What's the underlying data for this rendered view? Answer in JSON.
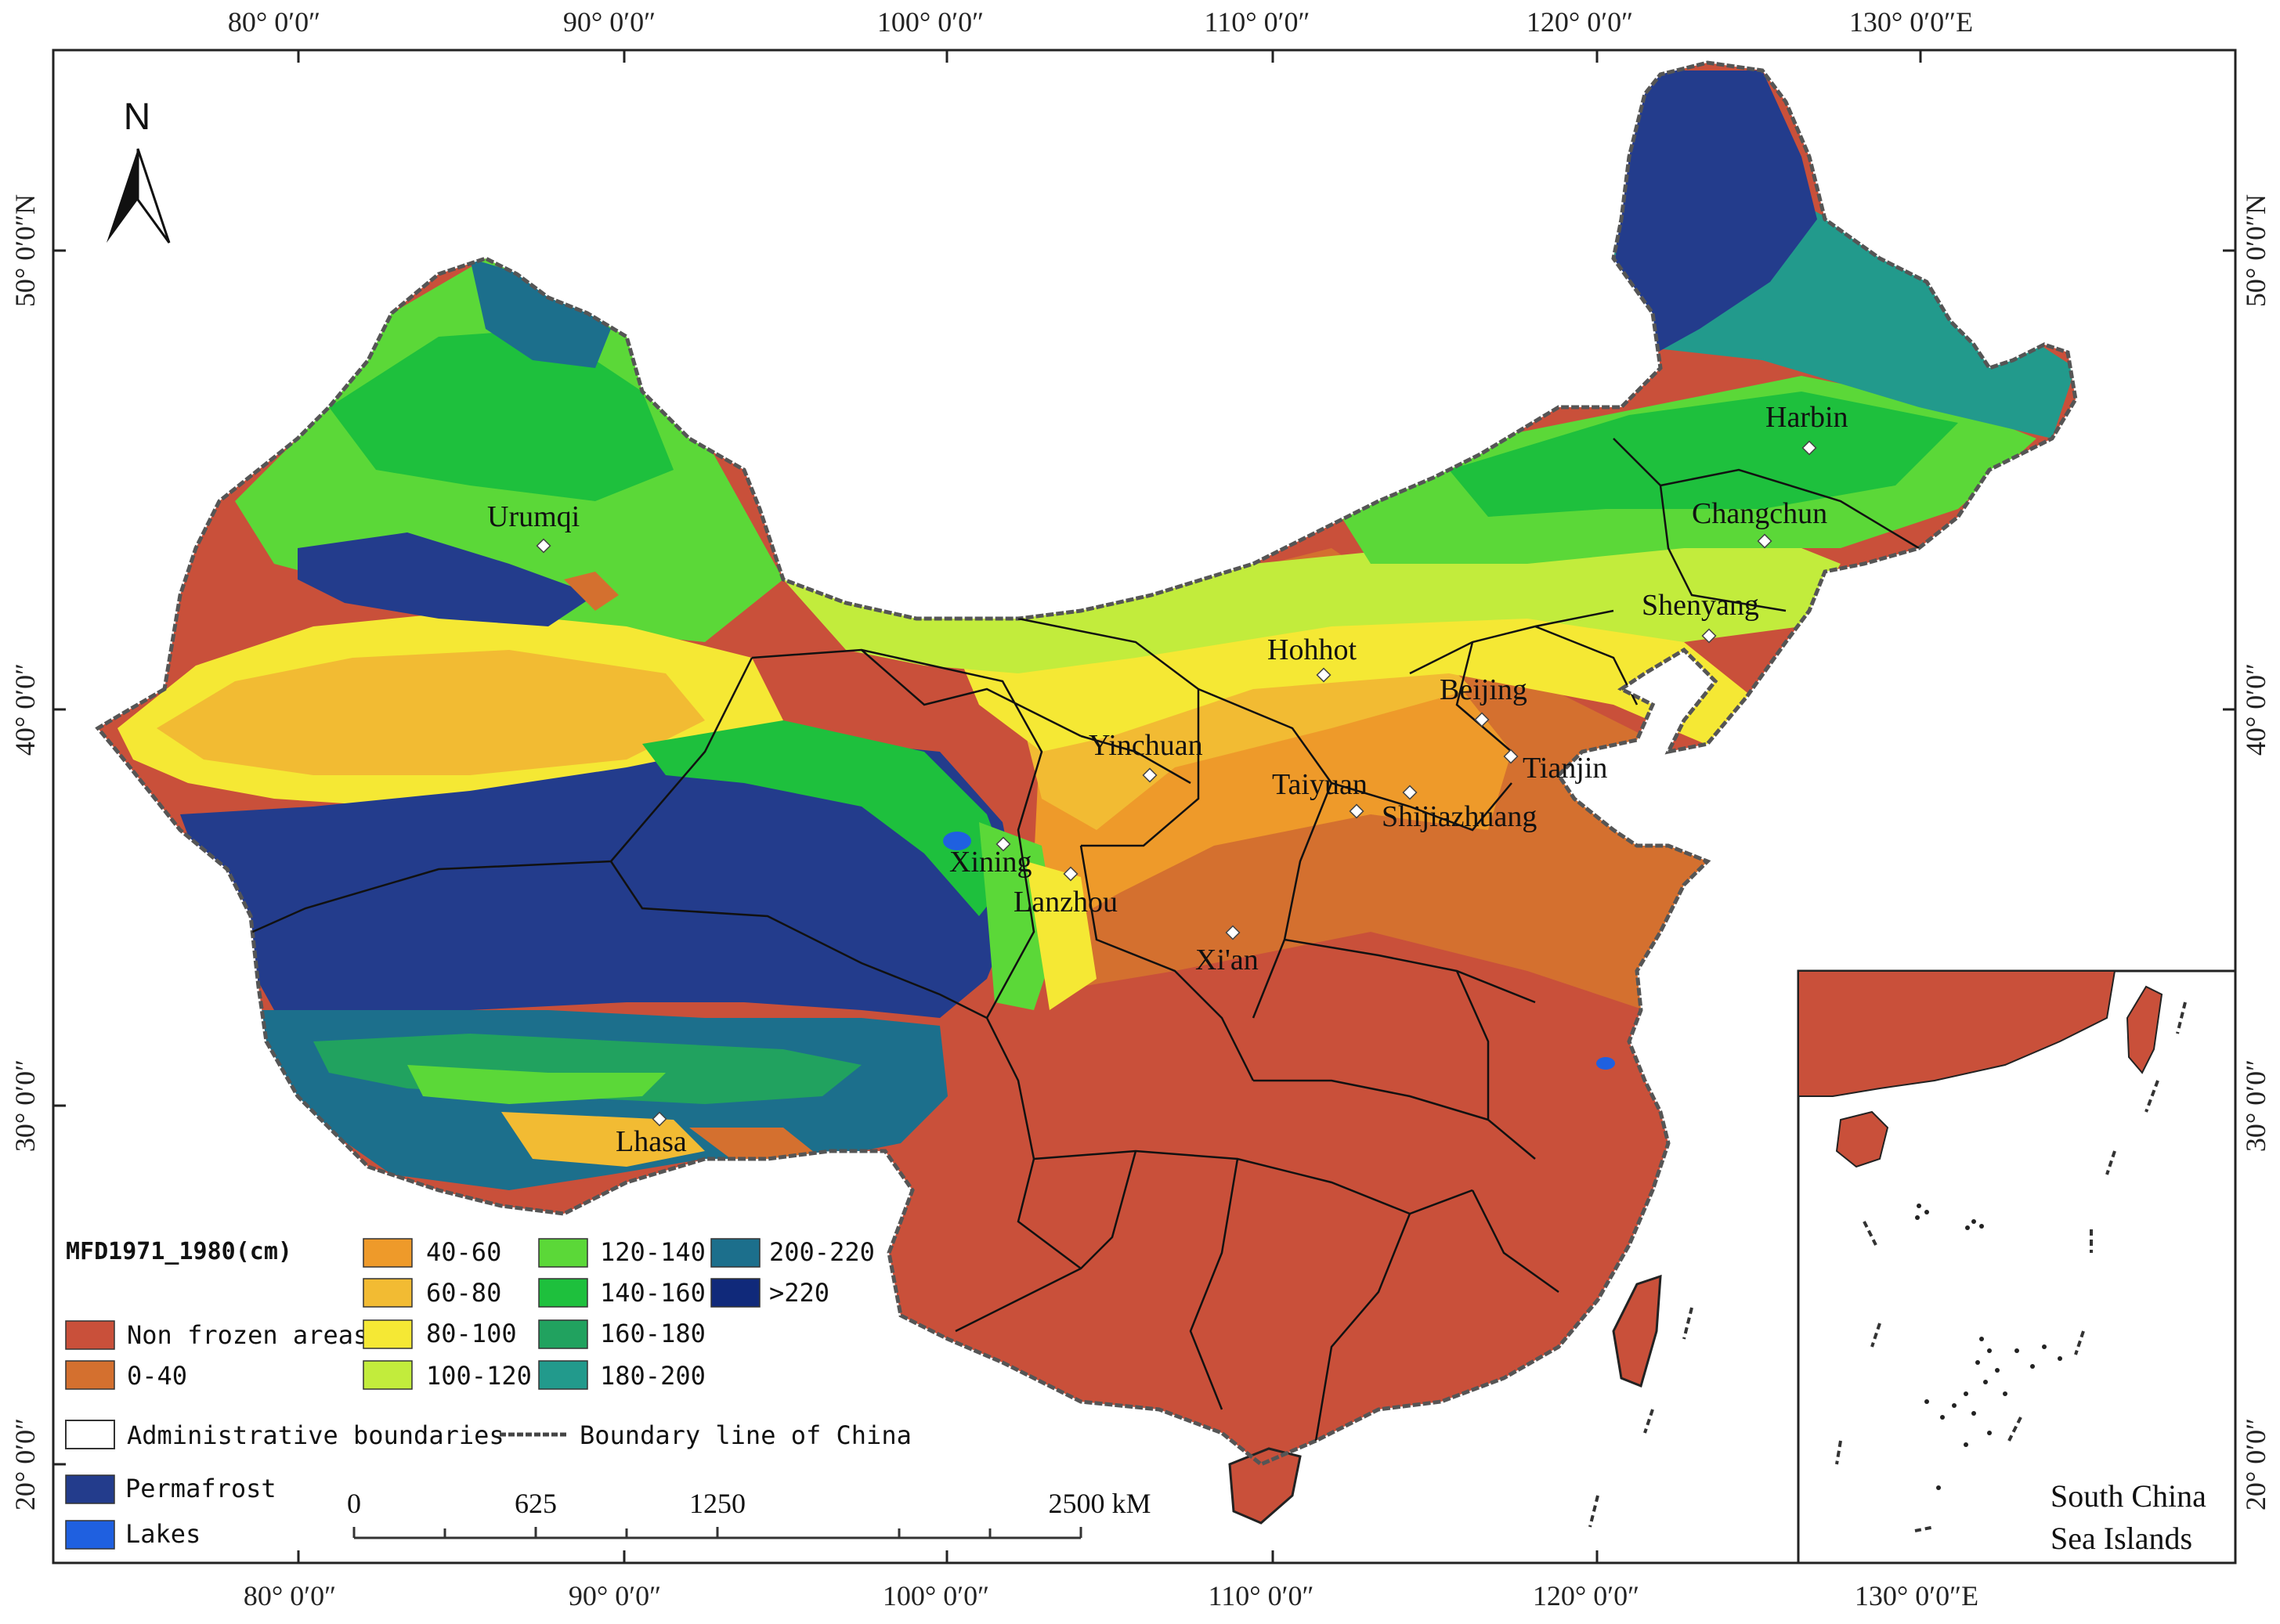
{
  "map": {
    "axes": {
      "top": [
        "80° 0′0″",
        "90° 0′0″",
        "100° 0′0″",
        "110° 0′0″",
        "120° 0′0″",
        "130° 0′0″E"
      ],
      "bottom": [
        "80° 0′0″",
        "90° 0′0″",
        "100° 0′0″",
        "110° 0′0″",
        "120° 0′0″",
        "130° 0′0″E"
      ],
      "left": [
        "50° 0′0″N",
        "40° 0′0″",
        "30° 0′0″",
        "20° 0′0″"
      ],
      "right": [
        "50° 0′0″N",
        "40° 0′0″",
        "30° 0′0″",
        "20° 0′0″"
      ]
    },
    "north_arrow": {
      "label": "N"
    },
    "cities": [
      {
        "name": "Urumqi"
      },
      {
        "name": "Harbin"
      },
      {
        "name": "Changchun"
      },
      {
        "name": "Shenyang"
      },
      {
        "name": "Hohhot"
      },
      {
        "name": "Beijing"
      },
      {
        "name": "Tianjin"
      },
      {
        "name": "Yinchuan"
      },
      {
        "name": "Taiyuan"
      },
      {
        "name": "Shijiazhuang"
      },
      {
        "name": "Xining"
      },
      {
        "name": "Lanzhou"
      },
      {
        "name": "Xi'an"
      },
      {
        "name": "Lhasa"
      }
    ],
    "legend": {
      "title": "MFD1971_1980(cm)",
      "classes": [
        {
          "label": "Non frozen areas",
          "color": "#c9503a"
        },
        {
          "label": "0-40",
          "color": "#d4702f"
        },
        {
          "label": "40-60",
          "color": "#ee9a2a"
        },
        {
          "label": "60-80",
          "color": "#f2bb33"
        },
        {
          "label": "80-100",
          "color": "#f5e834"
        },
        {
          "label": "100-120",
          "color": "#c2ec3c"
        },
        {
          "label": "120-140",
          "color": "#5bd838"
        },
        {
          "label": "140-160",
          "color": "#1ec03d"
        },
        {
          "label": "160-180",
          "color": "#21a25f"
        },
        {
          "label": "180-200",
          "color": "#229a8c"
        },
        {
          "label": "200-220",
          "color": "#1c6f8c"
        },
        {
          "label": ">220",
          "color": "#10297a"
        }
      ],
      "admin_boundaries": "Administrative boundaries",
      "china_boundary": "Boundary line of China",
      "permafrost": {
        "label": "Permafrost",
        "color": "#233c8c"
      },
      "lakes": {
        "label": "Lakes",
        "color": "#1f60e0"
      }
    },
    "scale_bar": {
      "labels": [
        "0",
        "625",
        "1250",
        "2500 kM"
      ]
    },
    "inset": {
      "line1": "South China",
      "line2": "Sea Islands"
    }
  }
}
